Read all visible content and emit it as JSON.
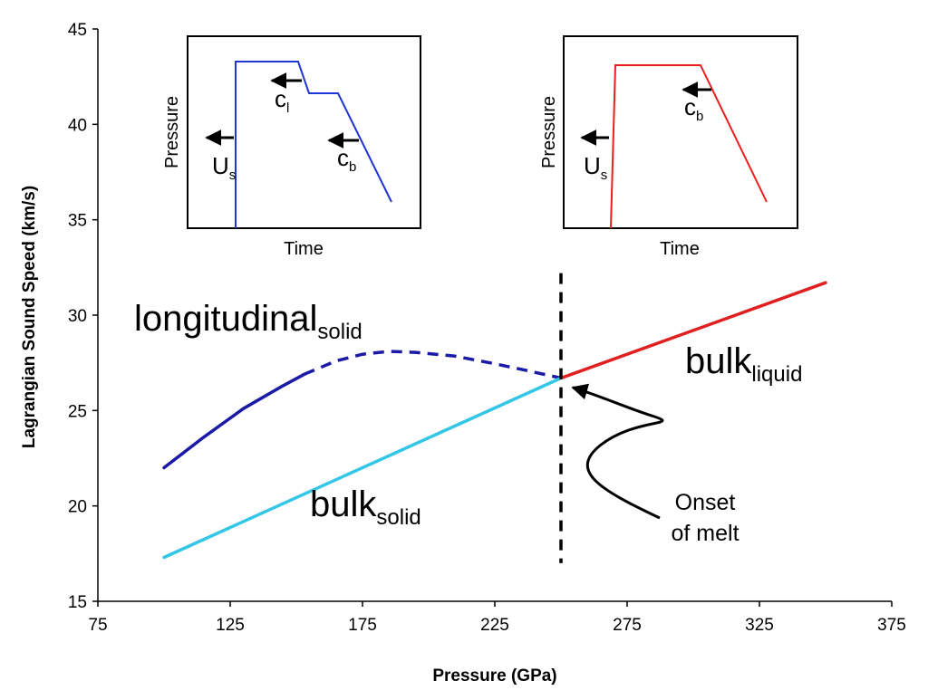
{
  "chart_data": {
    "type": "line",
    "xlabel": "Pressure (GPa)",
    "ylabel": "Lagrangian Sound Speed (km/s)",
    "xlim": [
      75,
      375
    ],
    "ylim": [
      15,
      45
    ],
    "x_ticks": [
      "75",
      "125",
      "175",
      "225",
      "275",
      "325",
      "375"
    ],
    "y_ticks": [
      "15",
      "20",
      "25",
      "30",
      "35",
      "40",
      "45"
    ],
    "grid": false,
    "colors": {
      "longitudinal": "#1a1aa6",
      "bulk_solid": "#33c6e6",
      "bulk_liquid": "#e02020",
      "inset_left": "#1f35d6",
      "inset_right": "#ee1c1c"
    },
    "series": [
      {
        "key": "longitudinal_solid",
        "main": "longitudinal",
        "sub": "solid",
        "style": "solid",
        "points": [
          [
            100,
            22.0
          ],
          [
            115,
            23.6
          ],
          [
            130,
            25.1
          ],
          [
            145,
            26.3
          ],
          [
            153,
            26.9
          ]
        ]
      },
      {
        "key": "longitudinal_solid_extrapolated",
        "style": "dashed",
        "points": [
          [
            153,
            26.9
          ],
          [
            165,
            27.6
          ],
          [
            175,
            27.95
          ],
          [
            185,
            28.1
          ],
          [
            195,
            28.05
          ],
          [
            210,
            27.85
          ],
          [
            225,
            27.45
          ],
          [
            237,
            27.1
          ],
          [
            250,
            26.7
          ]
        ]
      },
      {
        "key": "bulk_solid",
        "main": "bulk",
        "sub": "solid",
        "style": "solid",
        "points": [
          [
            100,
            17.3
          ],
          [
            250,
            26.7
          ]
        ]
      },
      {
        "key": "bulk_liquid",
        "main": "bulk",
        "sub": "liquid",
        "style": "solid",
        "points": [
          [
            250,
            26.7
          ],
          [
            350,
            31.7
          ]
        ]
      }
    ],
    "melt_line": {
      "x": 250,
      "y_range": [
        17.0,
        32.2
      ]
    },
    "annotations": {
      "onset_line1": "Onset",
      "onset_line2": "of melt"
    },
    "insets": [
      {
        "xlabel": "Time",
        "ylabel": "Pressure",
        "labels": {
          "us_main": "U",
          "us_sub": "s",
          "cl_main": "c",
          "cl_sub": "l",
          "cb_main": "c",
          "cb_sub": "b"
        }
      },
      {
        "xlabel": "Time",
        "ylabel": "Pressure",
        "labels": {
          "us_main": "U",
          "us_sub": "s",
          "cb_main": "c",
          "cb_sub": "b"
        }
      }
    ]
  }
}
